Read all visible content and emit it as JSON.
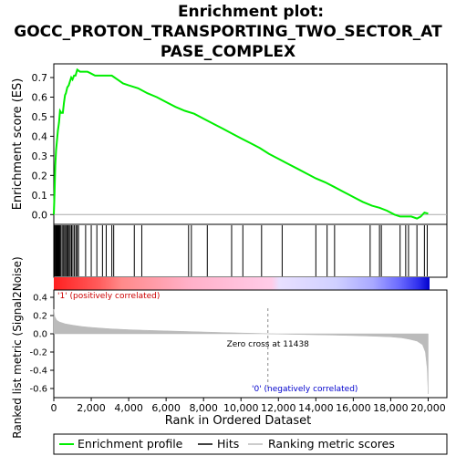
{
  "title_lines": [
    "Enrichment plot:",
    "GOCC_PROTON_TRANSPORTING_TWO_SECTOR_AT",
    "PASE_COMPLEX"
  ],
  "colors": {
    "enrichment": "#00ee00",
    "hits": "#000000",
    "metric": "#bbbbbb",
    "positive_label": "#cc0000",
    "negative_label": "#0000cc"
  },
  "chart_data": {
    "type": "line",
    "x_max": 20000,
    "xlim": [
      0,
      21000
    ],
    "xticks": [
      0,
      2000,
      4000,
      6000,
      8000,
      10000,
      12000,
      14000,
      16000,
      18000,
      20000
    ],
    "xtick_labels": [
      "0",
      "2,000",
      "4,000",
      "6,000",
      "8,000",
      "10,000",
      "12,000",
      "14,000",
      "16,000",
      "18,000",
      "20,000"
    ],
    "xlabel": "Rank in Ordered Dataset",
    "es_panel": {
      "ylabel": "Enrichment score (ES)",
      "ylim": [
        -0.05,
        0.77
      ],
      "yticks": [
        0.0,
        0.1,
        0.2,
        0.3,
        0.4,
        0.5,
        0.6,
        0.7
      ],
      "ytick_labels": [
        "0.0",
        "0.1",
        "0.2",
        "0.3",
        "0.4",
        "0.5",
        "0.6",
        "0.7"
      ],
      "series_name": "Enrichment profile",
      "points": [
        [
          0,
          0.0
        ],
        [
          40,
          0.11
        ],
        [
          80,
          0.25
        ],
        [
          120,
          0.33
        ],
        [
          170,
          0.38
        ],
        [
          220,
          0.43
        ],
        [
          280,
          0.47
        ],
        [
          330,
          0.53
        ],
        [
          400,
          0.52
        ],
        [
          480,
          0.52
        ],
        [
          540,
          0.57
        ],
        [
          600,
          0.61
        ],
        [
          650,
          0.62
        ],
        [
          720,
          0.65
        ],
        [
          800,
          0.66
        ],
        [
          860,
          0.68
        ],
        [
          930,
          0.7
        ],
        [
          1000,
          0.69
        ],
        [
          1080,
          0.71
        ],
        [
          1160,
          0.71
        ],
        [
          1250,
          0.74
        ],
        [
          1400,
          0.73
        ],
        [
          1600,
          0.73
        ],
        [
          1800,
          0.73
        ],
        [
          2000,
          0.72
        ],
        [
          2200,
          0.71
        ],
        [
          2500,
          0.71
        ],
        [
          2800,
          0.71
        ],
        [
          3100,
          0.71
        ],
        [
          3400,
          0.69
        ],
        [
          3700,
          0.67
        ],
        [
          4000,
          0.66
        ],
        [
          4500,
          0.645
        ],
        [
          5000,
          0.62
        ],
        [
          5500,
          0.6
        ],
        [
          6000,
          0.575
        ],
        [
          6500,
          0.55
        ],
        [
          7000,
          0.53
        ],
        [
          7500,
          0.515
        ],
        [
          8000,
          0.49
        ],
        [
          8500,
          0.465
        ],
        [
          9000,
          0.44
        ],
        [
          9500,
          0.415
        ],
        [
          10000,
          0.39
        ],
        [
          10500,
          0.365
        ],
        [
          11000,
          0.34
        ],
        [
          11500,
          0.31
        ],
        [
          12000,
          0.285
        ],
        [
          12500,
          0.26
        ],
        [
          13000,
          0.235
        ],
        [
          13500,
          0.21
        ],
        [
          14000,
          0.185
        ],
        [
          14500,
          0.165
        ],
        [
          15000,
          0.14
        ],
        [
          15500,
          0.115
        ],
        [
          16000,
          0.09
        ],
        [
          16500,
          0.065
        ],
        [
          17000,
          0.045
        ],
        [
          17400,
          0.035
        ],
        [
          17800,
          0.02
        ],
        [
          18200,
          0.0
        ],
        [
          18500,
          -0.01
        ],
        [
          18800,
          -0.01
        ],
        [
          19100,
          -0.01
        ],
        [
          19400,
          -0.02
        ],
        [
          19600,
          -0.01
        ],
        [
          19800,
          0.01
        ],
        [
          20000,
          0.005
        ]
      ]
    },
    "hits": [
      40,
      80,
      110,
      140,
      170,
      200,
      230,
      260,
      290,
      330,
      380,
      450,
      520,
      580,
      640,
      700,
      760,
      820,
      880,
      950,
      1020,
      1100,
      1180,
      1250,
      1320,
      1700,
      2000,
      2300,
      2600,
      2800,
      3100,
      3200,
      4300,
      4700,
      7200,
      7350,
      8200,
      9500,
      10100,
      11100,
      12200,
      14000,
      14600,
      15000,
      16900,
      17400,
      17500,
      18500,
      18800,
      18950,
      19400,
      19800,
      19950
    ],
    "metric_panel": {
      "ylabel": "Ranked list metric (Signal2Noise)",
      "ylim": [
        -0.7,
        0.48
      ],
      "yticks": [
        0.4,
        0.2,
        0.0,
        -0.2,
        -0.4,
        -0.6
      ],
      "ytick_labels": [
        "0.4",
        "0.2",
        "0.0",
        "-0.2",
        "-0.4",
        "-0.6"
      ],
      "series_name": "Ranking metric scores",
      "points": [
        [
          0,
          0.27
        ],
        [
          50,
          0.19
        ],
        [
          150,
          0.15
        ],
        [
          300,
          0.13
        ],
        [
          600,
          0.11
        ],
        [
          1000,
          0.095
        ],
        [
          1500,
          0.08
        ],
        [
          2000,
          0.07
        ],
        [
          3000,
          0.055
        ],
        [
          4000,
          0.045
        ],
        [
          5000,
          0.038
        ],
        [
          6000,
          0.032
        ],
        [
          7000,
          0.026
        ],
        [
          8000,
          0.02
        ],
        [
          9000,
          0.014
        ],
        [
          10000,
          0.009
        ],
        [
          11000,
          0.004
        ],
        [
          11438,
          0.0
        ],
        [
          12000,
          -0.003
        ],
        [
          13000,
          -0.007
        ],
        [
          14000,
          -0.011
        ],
        [
          15000,
          -0.015
        ],
        [
          16000,
          -0.02
        ],
        [
          17000,
          -0.026
        ],
        [
          18000,
          -0.034
        ],
        [
          18600,
          -0.045
        ],
        [
          19000,
          -0.06
        ],
        [
          19400,
          -0.08
        ],
        [
          19700,
          -0.12
        ],
        [
          19850,
          -0.2
        ],
        [
          19950,
          -0.38
        ],
        [
          20000,
          -0.66
        ]
      ],
      "zero_cross": 11438
    },
    "annotations": {
      "positive": "'1' (positively correlated)",
      "negative": "'0' (negatively correlated)",
      "zero_cross": "Zero cross at 11438"
    },
    "legend": [
      {
        "label": "Enrichment profile",
        "kind": "enrichment"
      },
      {
        "label": "Hits",
        "kind": "hits"
      },
      {
        "label": "Ranking metric scores",
        "kind": "metric"
      }
    ]
  }
}
